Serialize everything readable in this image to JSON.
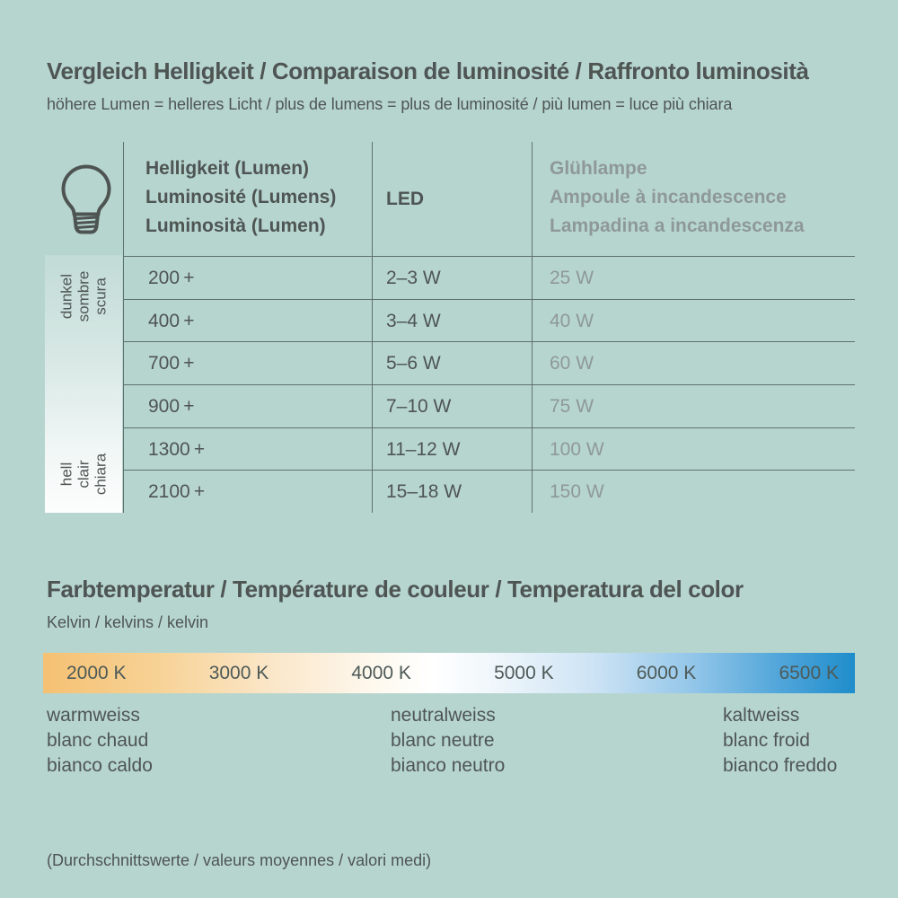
{
  "page": {
    "bg_color": "#b7d5cf",
    "text_dark": "#4e5553",
    "text_gray": "#8e9997",
    "line_color": "#5f706d"
  },
  "brightness": {
    "title": "Vergleich Helligkeit / Comparaison de luminosité / Raffronto luminosità",
    "subtitle": "höhere Lumen = helleres Licht / plus de lumens = plus de luminosité / più lumen = luce più chiara",
    "table": {
      "lumen_header": [
        "Helligkeit (Lumen)",
        "Luminosité (Lumens)",
        "Luminosità (Lumen)"
      ],
      "led_header": "LED",
      "incandescent_header": [
        "Glühlampe",
        "Ampoule à incandescence",
        "Lampadina a incandescenza"
      ],
      "rows": [
        {
          "lumen": "200 +",
          "led": "2–3 W",
          "incandescent": "25 W"
        },
        {
          "lumen": "400 +",
          "led": "3–4 W",
          "incandescent": "40 W"
        },
        {
          "lumen": "700 +",
          "led": "5–6 W",
          "incandescent": "60 W"
        },
        {
          "lumen": "900 +",
          "led": "7–10 W",
          "incandescent": "75 W"
        },
        {
          "lumen": "1300 +",
          "led": "11–12 W",
          "incandescent": "100 W"
        },
        {
          "lumen": "2100 +",
          "led": "15–18 W",
          "incandescent": "150 W"
        }
      ],
      "scale_dark": [
        "dunkel",
        "sombre",
        "scura"
      ],
      "scale_bright": [
        "hell",
        "clair",
        "chiara"
      ]
    }
  },
  "temperature": {
    "title": "Farbtemperatur / Température de couleur / Temperatura del color",
    "subtitle": "Kelvin / kelvins / kelvin",
    "scale_labels": [
      "2000 K",
      "3000 K",
      "4000 K",
      "5000 K",
      "6000 K",
      "6500 K"
    ],
    "gradient_colors": {
      "warm": "#f5c173",
      "neutral": "#ffffff",
      "cold": "#1f8dcb"
    },
    "warm_labels": [
      "warmweiss",
      "blanc chaud",
      "bianco caldo"
    ],
    "neutral_labels": [
      "neutralweiss",
      "blanc neutre",
      "bianco neutro"
    ],
    "cold_labels": [
      "kaltweiss",
      "blanc froid",
      "bianco freddo"
    ]
  },
  "footer_note": "(Durchschnittswerte / valeurs moyennes / valori medi)"
}
